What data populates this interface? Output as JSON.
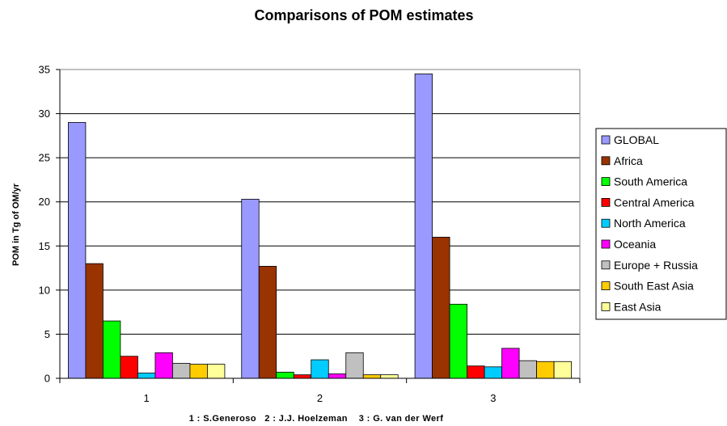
{
  "chart_data": {
    "type": "bar",
    "title": "Comparisons of POM estimates",
    "ylabel": "POM in Tg of OM/yr",
    "xlabel": "1 : S.Generoso   2 : J.J. Hoelzeman    3 : G. van der Werf",
    "categories": [
      "1",
      "2",
      "3"
    ],
    "ylim": [
      0,
      35
    ],
    "yticks": [
      0,
      5,
      10,
      15,
      20,
      25,
      30,
      35
    ],
    "grid": true,
    "legend_position": "right",
    "series": [
      {
        "name": "GLOBAL",
        "color": "#9999ff",
        "values": [
          29.0,
          20.3,
          34.5
        ]
      },
      {
        "name": "Africa",
        "color": "#993300",
        "values": [
          13.0,
          12.7,
          16.0
        ]
      },
      {
        "name": "South America",
        "color": "#00ff00",
        "values": [
          6.5,
          0.7,
          8.4
        ]
      },
      {
        "name": "Central America",
        "color": "#ff0000",
        "values": [
          2.5,
          0.4,
          1.4
        ]
      },
      {
        "name": "North America",
        "color": "#00ccff",
        "values": [
          0.6,
          2.1,
          1.3
        ]
      },
      {
        "name": "Oceania",
        "color": "#ff00ff",
        "values": [
          2.9,
          0.5,
          3.4
        ]
      },
      {
        "name": "Europe + Russia",
        "color": "#c0c0c0",
        "values": [
          1.7,
          2.9,
          2.0
        ]
      },
      {
        "name": "South East Asia",
        "color": "#ffcc00",
        "values": [
          1.6,
          0.4,
          1.9
        ]
      },
      {
        "name": "East Asia",
        "color": "#ffff99",
        "values": [
          1.6,
          0.4,
          1.9
        ]
      }
    ]
  }
}
